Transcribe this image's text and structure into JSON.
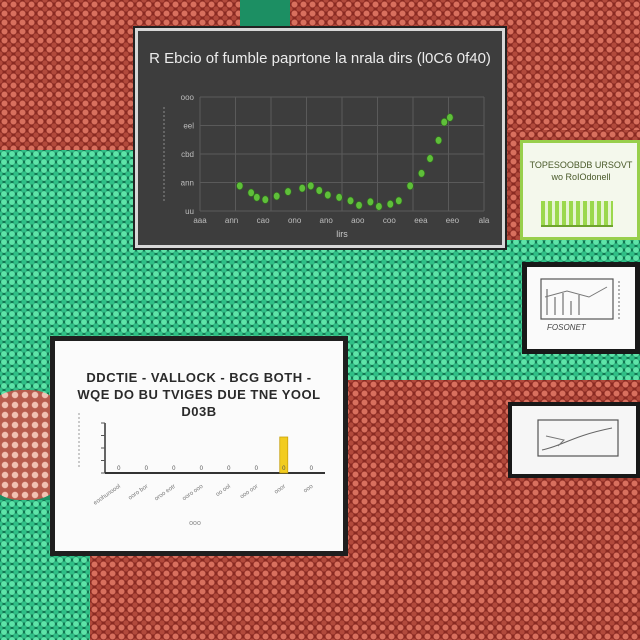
{
  "panels": {
    "scatter": {
      "title": "R Ebcio of fumble paprtone la nrala dirs (l0C6 0f40)",
      "xlabel": "lirs"
    },
    "bar": {
      "title": "DDCTIE - VALLOCK - BCG BOTH - WQE DO BU TVIGES DUE TNE YOOL D03B"
    },
    "green": {
      "title": "TOPESOOBDB URSOVT wo RoIOdonell"
    },
    "sketch1": {
      "label": "FOSONET"
    }
  },
  "chart_data": [
    {
      "type": "scatter",
      "title": "R Ebcio of fumble paprtone la nrala dirs (l0C6 0f40)",
      "xlabel": "lirs",
      "ylabel": "",
      "y_ticks": [
        "uu",
        "ann",
        "cbd",
        "eel",
        "ooo"
      ],
      "x_ticks": [
        "aaa",
        "ann",
        "cao",
        "ono",
        "ano",
        "aoo",
        "coo",
        "eea",
        "eeo",
        "ala"
      ],
      "xlim": [
        0,
        100
      ],
      "ylim": [
        0,
        100
      ],
      "grid": true,
      "x": [
        14,
        18,
        20,
        23,
        27,
        31,
        36,
        39,
        42,
        45,
        49,
        53,
        56,
        60,
        63,
        67,
        70,
        74,
        78,
        81,
        84,
        86,
        88
      ],
      "y": [
        22,
        16,
        12,
        10,
        13,
        17,
        20,
        22,
        18,
        14,
        12,
        9,
        5,
        8,
        4,
        6,
        9,
        22,
        33,
        46,
        62,
        78,
        82
      ],
      "point_color": "#5fbf3a"
    },
    {
      "type": "bar",
      "title": "DDCTIE - VALLOCK - BCG BOTH - WQE DO BU TVIGES DUE TNE YOOL D03B",
      "categories": [
        "eoohunoool",
        "ooro bor",
        "oroo eotr",
        "ooro ooo",
        "oo ool",
        "ooo oor",
        "ooor",
        "ooo"
      ],
      "values": [
        0,
        0,
        0,
        0,
        0,
        0,
        72,
        0
      ],
      "y_ticks": [
        "",
        "",
        "",
        "",
        ""
      ],
      "ylim": [
        0,
        100
      ],
      "xlabel": "ooo",
      "bar_color": "#f2cc1f"
    }
  ]
}
